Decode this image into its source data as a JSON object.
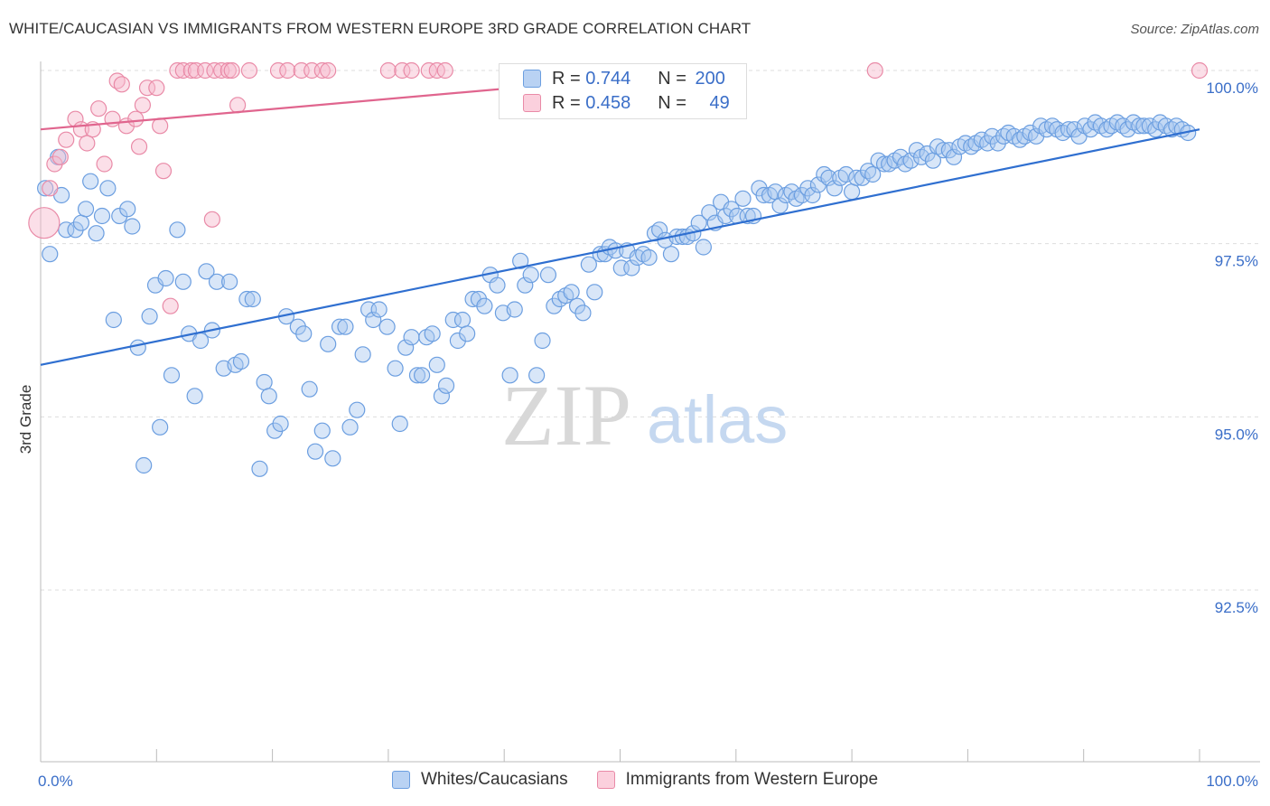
{
  "title": "WHITE/CAUCASIAN VS IMMIGRANTS FROM WESTERN EUROPE 3RD GRADE CORRELATION CHART",
  "source": "Source: ZipAtlas.com",
  "watermark": {
    "zip": "ZIP",
    "atlas": "atlas"
  },
  "legend": {
    "rows": [
      {
        "r_label": "R = ",
        "r_value": "0.744",
        "n_label": "N = ",
        "n_value": "200"
      },
      {
        "r_label": "R = ",
        "r_value": "0.458",
        "n_label": "N = ",
        "n_value": "49"
      }
    ]
  },
  "bottom_legend": [
    "Whites/Caucasians",
    "Immigrants from Western Europe"
  ],
  "colors": {
    "blue_fill": "#a9c7f0",
    "blue_stroke": "#6b9ee0",
    "blue_line": "#2f6fd0",
    "pink_fill": "#f7b8cb",
    "pink_stroke": "#e98aa7",
    "pink_line": "#e0658e",
    "tick_label": "#3a6ec8",
    "grid": "#dddddd"
  },
  "chart_data": {
    "type": "scatter",
    "title": "WHITE/CAUCASIAN VS IMMIGRANTS FROM WESTERN EUROPE 3RD GRADE CORRELATION CHART",
    "xlabel": "",
    "ylabel": "3rd Grade",
    "xlim": [
      0,
      100
    ],
    "ylim": [
      90.0,
      100.3
    ],
    "x_tick_labels": [
      "0.0%",
      "100.0%"
    ],
    "y_ticks": [
      100.0,
      97.5,
      95.0,
      92.5
    ],
    "y_tick_labels": [
      "100.0%",
      "97.5%",
      "95.0%",
      "92.5%"
    ],
    "grid": true,
    "legend_position": "top-center",
    "series": [
      {
        "name": "Whites/Caucasians",
        "r": 0.744,
        "n": 200,
        "trend": [
          [
            0,
            95.75
          ],
          [
            100,
            99.15
          ]
        ],
        "points": [
          [
            0.4,
            98.3
          ],
          [
            0.8,
            97.35
          ],
          [
            1.5,
            98.75
          ],
          [
            1.8,
            98.2
          ],
          [
            2.2,
            97.7
          ],
          [
            3.0,
            97.7
          ],
          [
            3.5,
            97.8
          ],
          [
            3.9,
            98.0
          ],
          [
            4.3,
            98.4
          ],
          [
            4.8,
            97.65
          ],
          [
            5.3,
            97.9
          ],
          [
            5.8,
            98.3
          ],
          [
            6.3,
            96.4
          ],
          [
            6.8,
            97.9
          ],
          [
            7.5,
            98.0
          ],
          [
            7.9,
            97.75
          ],
          [
            8.4,
            96.0
          ],
          [
            8.9,
            94.3
          ],
          [
            9.4,
            96.45
          ],
          [
            9.9,
            96.9
          ],
          [
            10.3,
            94.85
          ],
          [
            10.8,
            97.0
          ],
          [
            11.3,
            95.6
          ],
          [
            11.8,
            97.7
          ],
          [
            12.3,
            96.95
          ],
          [
            12.8,
            96.2
          ],
          [
            13.3,
            95.3
          ],
          [
            13.8,
            96.1
          ],
          [
            14.3,
            97.1
          ],
          [
            14.8,
            96.25
          ],
          [
            15.2,
            96.95
          ],
          [
            15.8,
            95.7
          ],
          [
            16.3,
            96.95
          ],
          [
            16.8,
            95.75
          ],
          [
            17.3,
            95.8
          ],
          [
            17.8,
            96.7
          ],
          [
            18.3,
            96.7
          ],
          [
            18.9,
            94.25
          ],
          [
            19.3,
            95.5
          ],
          [
            19.7,
            95.3
          ],
          [
            20.2,
            94.8
          ],
          [
            20.7,
            94.9
          ],
          [
            21.2,
            96.45
          ],
          [
            22.2,
            96.3
          ],
          [
            22.7,
            96.2
          ],
          [
            23.2,
            95.4
          ],
          [
            23.7,
            94.5
          ],
          [
            24.3,
            94.8
          ],
          [
            24.8,
            96.05
          ],
          [
            25.2,
            94.4
          ],
          [
            25.8,
            96.3
          ],
          [
            26.3,
            96.3
          ],
          [
            26.7,
            94.85
          ],
          [
            27.3,
            95.1
          ],
          [
            27.8,
            95.9
          ],
          [
            28.3,
            96.55
          ],
          [
            28.7,
            96.4
          ],
          [
            29.2,
            96.55
          ],
          [
            29.9,
            96.3
          ],
          [
            30.6,
            95.7
          ],
          [
            31.0,
            94.9
          ],
          [
            31.5,
            96.0
          ],
          [
            32.0,
            96.15
          ],
          [
            32.5,
            95.6
          ],
          [
            32.9,
            95.6
          ],
          [
            33.3,
            96.15
          ],
          [
            33.8,
            96.2
          ],
          [
            34.2,
            95.75
          ],
          [
            34.6,
            95.3
          ],
          [
            35.0,
            95.45
          ],
          [
            35.6,
            96.4
          ],
          [
            36.0,
            96.1
          ],
          [
            36.4,
            96.4
          ],
          [
            36.8,
            96.2
          ],
          [
            37.3,
            96.7
          ],
          [
            37.8,
            96.7
          ],
          [
            38.3,
            96.6
          ],
          [
            38.8,
            97.05
          ],
          [
            39.4,
            96.9
          ],
          [
            39.9,
            96.5
          ],
          [
            40.5,
            95.6
          ],
          [
            40.9,
            96.55
          ],
          [
            41.4,
            97.25
          ],
          [
            41.8,
            96.9
          ],
          [
            42.3,
            97.05
          ],
          [
            42.8,
            95.6
          ],
          [
            43.3,
            96.1
          ],
          [
            43.8,
            97.05
          ],
          [
            44.3,
            96.6
          ],
          [
            44.8,
            96.7
          ],
          [
            45.3,
            96.75
          ],
          [
            45.8,
            96.8
          ],
          [
            46.3,
            96.6
          ],
          [
            46.8,
            96.5
          ],
          [
            47.3,
            97.2
          ],
          [
            47.8,
            96.8
          ],
          [
            48.3,
            97.35
          ],
          [
            48.7,
            97.35
          ],
          [
            49.1,
            97.45
          ],
          [
            49.6,
            97.4
          ],
          [
            50.1,
            97.15
          ],
          [
            50.6,
            97.4
          ],
          [
            51.0,
            97.15
          ],
          [
            51.5,
            97.3
          ],
          [
            52.0,
            97.35
          ],
          [
            52.5,
            97.3
          ],
          [
            53.0,
            97.65
          ],
          [
            53.4,
            97.7
          ],
          [
            53.9,
            97.55
          ],
          [
            54.4,
            97.35
          ],
          [
            54.9,
            97.6
          ],
          [
            55.4,
            97.6
          ],
          [
            55.8,
            97.6
          ],
          [
            56.3,
            97.65
          ],
          [
            56.8,
            97.8
          ],
          [
            57.2,
            97.45
          ],
          [
            57.7,
            97.95
          ],
          [
            58.2,
            97.8
          ],
          [
            58.7,
            98.1
          ],
          [
            59.1,
            97.9
          ],
          [
            59.6,
            98.0
          ],
          [
            60.1,
            97.9
          ],
          [
            60.6,
            98.15
          ],
          [
            61.0,
            97.9
          ],
          [
            61.5,
            97.9
          ],
          [
            62.0,
            98.3
          ],
          [
            62.4,
            98.2
          ],
          [
            62.9,
            98.2
          ],
          [
            63.4,
            98.25
          ],
          [
            63.8,
            98.05
          ],
          [
            64.3,
            98.2
          ],
          [
            64.8,
            98.25
          ],
          [
            65.2,
            98.15
          ],
          [
            65.7,
            98.2
          ],
          [
            66.2,
            98.3
          ],
          [
            66.6,
            98.2
          ],
          [
            67.1,
            98.35
          ],
          [
            67.6,
            98.5
          ],
          [
            68.0,
            98.45
          ],
          [
            68.5,
            98.3
          ],
          [
            69.0,
            98.45
          ],
          [
            69.5,
            98.5
          ],
          [
            70.0,
            98.25
          ],
          [
            70.4,
            98.45
          ],
          [
            70.9,
            98.45
          ],
          [
            71.4,
            98.55
          ],
          [
            71.8,
            98.5
          ],
          [
            72.3,
            98.7
          ],
          [
            72.8,
            98.65
          ],
          [
            73.2,
            98.65
          ],
          [
            73.7,
            98.7
          ],
          [
            74.2,
            98.75
          ],
          [
            74.6,
            98.65
          ],
          [
            75.1,
            98.7
          ],
          [
            75.6,
            98.85
          ],
          [
            76.0,
            98.75
          ],
          [
            76.5,
            98.8
          ],
          [
            77.0,
            98.7
          ],
          [
            77.4,
            98.9
          ],
          [
            77.9,
            98.85
          ],
          [
            78.4,
            98.85
          ],
          [
            78.8,
            98.75
          ],
          [
            79.3,
            98.9
          ],
          [
            79.8,
            98.95
          ],
          [
            80.3,
            98.9
          ],
          [
            80.7,
            98.95
          ],
          [
            81.2,
            99.0
          ],
          [
            81.7,
            98.95
          ],
          [
            82.1,
            99.05
          ],
          [
            82.6,
            98.95
          ],
          [
            83.1,
            99.05
          ],
          [
            83.5,
            99.1
          ],
          [
            84.0,
            99.05
          ],
          [
            84.5,
            99.0
          ],
          [
            84.9,
            99.05
          ],
          [
            85.4,
            99.1
          ],
          [
            85.9,
            99.05
          ],
          [
            86.3,
            99.2
          ],
          [
            86.8,
            99.15
          ],
          [
            87.3,
            99.2
          ],
          [
            87.7,
            99.15
          ],
          [
            88.2,
            99.1
          ],
          [
            88.7,
            99.15
          ],
          [
            89.2,
            99.15
          ],
          [
            89.6,
            99.05
          ],
          [
            90.1,
            99.2
          ],
          [
            90.6,
            99.15
          ],
          [
            91.0,
            99.25
          ],
          [
            91.5,
            99.2
          ],
          [
            92.0,
            99.15
          ],
          [
            92.4,
            99.2
          ],
          [
            92.9,
            99.25
          ],
          [
            93.4,
            99.2
          ],
          [
            93.8,
            99.15
          ],
          [
            94.3,
            99.25
          ],
          [
            94.8,
            99.2
          ],
          [
            95.2,
            99.2
          ],
          [
            95.7,
            99.2
          ],
          [
            96.2,
            99.15
          ],
          [
            96.6,
            99.25
          ],
          [
            97.1,
            99.2
          ],
          [
            97.6,
            99.15
          ],
          [
            98.0,
            99.2
          ],
          [
            98.5,
            99.15
          ],
          [
            99.0,
            99.1
          ]
        ]
      },
      {
        "name": "Immigrants from Western Europe",
        "r": 0.458,
        "n": 49,
        "trend": [
          [
            0,
            99.15
          ],
          [
            58,
            100.0
          ]
        ],
        "points": [
          [
            0.3,
            97.8
          ],
          [
            0.8,
            98.3
          ],
          [
            1.2,
            98.65
          ],
          [
            1.7,
            98.75
          ],
          [
            2.2,
            99.0
          ],
          [
            3.0,
            99.3
          ],
          [
            3.5,
            99.15
          ],
          [
            4.0,
            98.95
          ],
          [
            4.5,
            99.15
          ],
          [
            5.0,
            99.45
          ],
          [
            5.5,
            98.65
          ],
          [
            6.2,
            99.3
          ],
          [
            6.6,
            99.85
          ],
          [
            7.0,
            99.8
          ],
          [
            7.4,
            99.2
          ],
          [
            8.2,
            99.3
          ],
          [
            8.5,
            98.9
          ],
          [
            8.8,
            99.5
          ],
          [
            9.2,
            99.75
          ],
          [
            10.0,
            99.75
          ],
          [
            10.3,
            99.2
          ],
          [
            10.6,
            98.55
          ],
          [
            11.2,
            96.6
          ],
          [
            11.8,
            100.0
          ],
          [
            12.3,
            100.0
          ],
          [
            13.0,
            100.0
          ],
          [
            13.4,
            100.0
          ],
          [
            14.2,
            100.0
          ],
          [
            14.8,
            97.85
          ],
          [
            15.0,
            100.0
          ],
          [
            15.6,
            100.0
          ],
          [
            16.2,
            100.0
          ],
          [
            16.5,
            100.0
          ],
          [
            17.0,
            99.5
          ],
          [
            18.0,
            100.0
          ],
          [
            20.5,
            100.0
          ],
          [
            21.3,
            100.0
          ],
          [
            22.5,
            100.0
          ],
          [
            23.4,
            100.0
          ],
          [
            24.3,
            100.0
          ],
          [
            24.8,
            100.0
          ],
          [
            30.0,
            100.0
          ],
          [
            31.2,
            100.0
          ],
          [
            32.0,
            100.0
          ],
          [
            33.5,
            100.0
          ],
          [
            34.2,
            100.0
          ],
          [
            34.9,
            100.0
          ],
          [
            72.0,
            100.0
          ],
          [
            100.0,
            100.0
          ]
        ]
      }
    ]
  }
}
